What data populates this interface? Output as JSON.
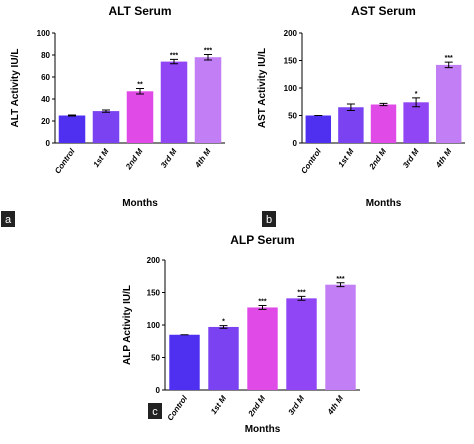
{
  "chart_data": [
    {
      "type": "bar",
      "title": "ALT Serum",
      "panel_label": "a",
      "xlabel": "Months",
      "ylabel": "ALT Activity IU/L",
      "categories": [
        "Control",
        "1st M",
        "2nd M",
        "3rd M",
        "4th M"
      ],
      "values": [
        25,
        29,
        47,
        74,
        78
      ],
      "errors": [
        0.5,
        1,
        2.5,
        2,
        2.5
      ],
      "annotations": [
        null,
        null,
        "**",
        "***",
        "***"
      ],
      "colors": [
        "#4f2ff0",
        "#7a42f0",
        "#e04be8",
        "#9046f5",
        "#c27ef5"
      ],
      "ylim": [
        0,
        100
      ],
      "yticks": [
        0,
        20,
        40,
        60,
        80,
        100
      ]
    },
    {
      "type": "bar",
      "title": "AST Serum",
      "panel_label": "b",
      "xlabel": "Months",
      "ylabel": "AST Activity IU/L",
      "categories": [
        "Control",
        "1st M",
        "2nd M",
        "3rd M",
        "4th M"
      ],
      "values": [
        50,
        65,
        70,
        74,
        142
      ],
      "errors": [
        0,
        6,
        2,
        8,
        5
      ],
      "annotations": [
        null,
        null,
        null,
        "*",
        "***"
      ],
      "colors": [
        "#4f2ff0",
        "#7a42f0",
        "#e04be8",
        "#9046f5",
        "#c27ef5"
      ],
      "ylim": [
        0,
        200
      ],
      "yticks": [
        0,
        50,
        100,
        150,
        200
      ]
    },
    {
      "type": "bar",
      "title": "ALP Serum",
      "panel_label": "c",
      "xlabel": "Months",
      "ylabel": "ALP Activity IU/L",
      "categories": [
        "Control",
        "1st M",
        "2nd M",
        "3rd M",
        "4th M"
      ],
      "values": [
        85,
        97,
        127,
        141,
        162
      ],
      "errors": [
        0,
        2,
        3,
        3,
        3
      ],
      "annotations": [
        null,
        "*",
        "***",
        "***",
        "***"
      ],
      "colors": [
        "#4f2ff0",
        "#7a42f0",
        "#e04be8",
        "#9046f5",
        "#c27ef5"
      ],
      "ylim": [
        0,
        200
      ],
      "yticks": [
        0,
        50,
        100,
        150,
        200
      ]
    }
  ]
}
